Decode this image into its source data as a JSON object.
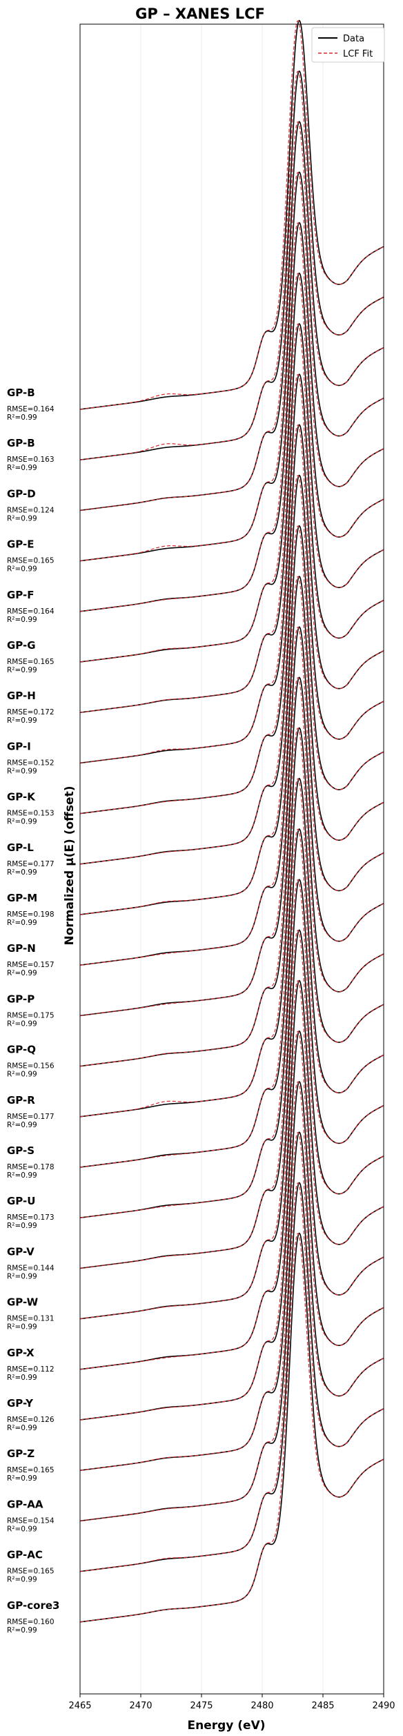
{
  "chart_data": {
    "type": "line",
    "title": "GP – XANES LCF",
    "xlabel": "Energy (eV)",
    "ylabel": "Normalized μ(E) (offset)",
    "xlim": [
      2465,
      2490
    ],
    "xticks": [
      "2465",
      "2470",
      "2475",
      "2480",
      "2485",
      "2490"
    ],
    "grid": "vertical",
    "legend": {
      "position": "top-right",
      "entries": [
        {
          "label": "Data",
          "color": "#000000",
          "style": "solid"
        },
        {
          "label": "LCF Fit",
          "color": "#d62728",
          "style": "dashed"
        }
      ]
    },
    "stat_labels": {
      "rmse": "RMSE=",
      "r2": "R²="
    },
    "spectra": [
      {
        "name": "GP-B",
        "rmse": "0.164",
        "r2": "0.99",
        "pre_edge_bump": 0.12
      },
      {
        "name": "GP-B",
        "rmse": "0.163",
        "r2": "0.99",
        "pre_edge_bump": 0.14
      },
      {
        "name": "GP-D",
        "rmse": "0.124",
        "r2": "0.99",
        "pre_edge_bump": 0.04
      },
      {
        "name": "GP-E",
        "rmse": "0.165",
        "r2": "0.99",
        "pre_edge_bump": 0.11
      },
      {
        "name": "GP-F",
        "rmse": "0.164",
        "r2": "0.99",
        "pre_edge_bump": 0.03
      },
      {
        "name": "GP-G",
        "rmse": "0.165",
        "r2": "0.99",
        "pre_edge_bump": 0.06
      },
      {
        "name": "GP-H",
        "rmse": "0.172",
        "r2": "0.99",
        "pre_edge_bump": 0.05
      },
      {
        "name": "GP-I",
        "rmse": "0.152",
        "r2": "0.99",
        "pre_edge_bump": 0.07
      },
      {
        "name": "GP-K",
        "rmse": "0.153",
        "r2": "0.99",
        "pre_edge_bump": 0.03
      },
      {
        "name": "GP-L",
        "rmse": "0.177",
        "r2": "0.99",
        "pre_edge_bump": 0.03
      },
      {
        "name": "GP-M",
        "rmse": "0.198",
        "r2": "0.99",
        "pre_edge_bump": 0.06
      },
      {
        "name": "GP-N",
        "rmse": "0.157",
        "r2": "0.99",
        "pre_edge_bump": 0.02
      },
      {
        "name": "GP-P",
        "rmse": "0.175",
        "r2": "0.99",
        "pre_edge_bump": 0.02
      },
      {
        "name": "GP-Q",
        "rmse": "0.156",
        "r2": "0.99",
        "pre_edge_bump": 0.05
      },
      {
        "name": "GP-R",
        "rmse": "0.177",
        "r2": "0.99",
        "pre_edge_bump": 0.12
      },
      {
        "name": "GP-S",
        "rmse": "0.178",
        "r2": "0.99",
        "pre_edge_bump": 0.02
      },
      {
        "name": "GP-U",
        "rmse": "0.173",
        "r2": "0.99",
        "pre_edge_bump": 0.02
      },
      {
        "name": "GP-V",
        "rmse": "0.144",
        "r2": "0.99",
        "pre_edge_bump": 0.03
      },
      {
        "name": "GP-W",
        "rmse": "0.131",
        "r2": "0.99",
        "pre_edge_bump": 0.03
      },
      {
        "name": "GP-X",
        "rmse": "0.112",
        "r2": "0.99",
        "pre_edge_bump": 0.02
      },
      {
        "name": "GP-Y",
        "rmse": "0.126",
        "r2": "0.99",
        "pre_edge_bump": 0.03
      },
      {
        "name": "GP-Z",
        "rmse": "0.165",
        "r2": "0.99",
        "pre_edge_bump": 0.05
      },
      {
        "name": "GP-AA",
        "rmse": "0.154",
        "r2": "0.99",
        "pre_edge_bump": 0.03
      },
      {
        "name": "GP-AC",
        "rmse": "0.165",
        "r2": "0.99",
        "pre_edge_bump": 0.06
      },
      {
        "name": "GP-core3",
        "rmse": "0.160",
        "r2": "0.99",
        "pre_edge_bump": 0.04
      }
    ]
  }
}
